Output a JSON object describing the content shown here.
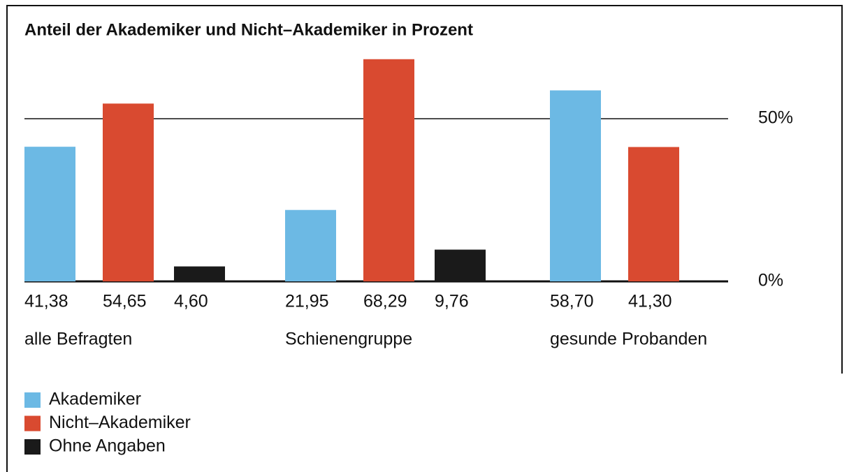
{
  "chart_data": {
    "type": "bar",
    "title": "Anteil der Akademiker und Nicht–Akademiker in Prozent",
    "categories": [
      "alle Befragten",
      "Schienengruppe",
      "gesunde Probanden"
    ],
    "series": [
      {
        "name": "Akademiker",
        "color": "#6cb9e4",
        "values": [
          41.38,
          21.95,
          58.7
        ],
        "value_labels": [
          "41,38",
          "21,95",
          "58,70"
        ]
      },
      {
        "name": "Nicht–Akademiker",
        "color": "#d94a30",
        "values": [
          54.65,
          68.29,
          41.3
        ],
        "value_labels": [
          "54,65",
          "68,29",
          "41,30"
        ]
      },
      {
        "name": "Ohne Angaben",
        "color": "#1a1a1a",
        "values": [
          4.6,
          9.76,
          null
        ],
        "value_labels": [
          "4,60",
          "9,76",
          null
        ]
      }
    ],
    "ylim": [
      0,
      70
    ],
    "yticks": [
      {
        "value": 0,
        "label": "0%"
      },
      {
        "value": 50,
        "label": "50%"
      }
    ],
    "grid": true
  }
}
